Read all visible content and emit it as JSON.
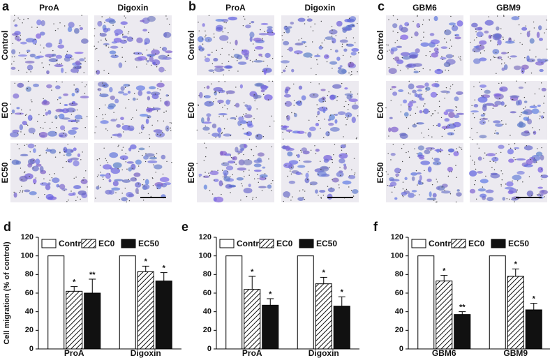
{
  "image_panels": [
    {
      "label": "a",
      "columns": [
        "ProA",
        "Digoxin"
      ],
      "rows": [
        "Control",
        "EC0",
        "EC50"
      ]
    },
    {
      "label": "b",
      "columns": [
        "ProA",
        "Digoxin"
      ],
      "rows": [
        "Control",
        "EC0",
        "EC50"
      ]
    },
    {
      "label": "c",
      "columns": [
        "GBM6",
        "GBM9"
      ],
      "rows": [
        "Control",
        "EC0",
        "EC50"
      ]
    }
  ],
  "chart_data": [
    {
      "type": "bar",
      "label": "d",
      "ylabel": "Cell migration (% of control)",
      "categories": [
        "ProA",
        "Digoxin"
      ],
      "ylim": [
        0,
        120
      ],
      "yticks": [
        0,
        20,
        40,
        60,
        80,
        100,
        120
      ],
      "series": [
        {
          "name": "Control",
          "color": "#ffffff",
          "values": [
            100,
            100
          ]
        },
        {
          "name": "EC0",
          "color": "#ffffff",
          "pattern": "hatch",
          "values": [
            62,
            83
          ],
          "errors": [
            5,
            6
          ],
          "annotations": [
            "*",
            "*"
          ]
        },
        {
          "name": "EC50",
          "color": "#111111",
          "values": [
            60,
            73
          ],
          "errors": [
            15,
            9
          ],
          "annotations": [
            "**",
            "*"
          ]
        }
      ]
    },
    {
      "type": "bar",
      "label": "e",
      "categories": [
        "ProA",
        "Digoxin"
      ],
      "ylim": [
        0,
        120
      ],
      "yticks": [
        0,
        20,
        40,
        60,
        80,
        100,
        120
      ],
      "series": [
        {
          "name": "Control",
          "color": "#ffffff",
          "values": [
            100,
            100
          ]
        },
        {
          "name": "EC0",
          "color": "#ffffff",
          "pattern": "hatch",
          "values": [
            64,
            70
          ],
          "errors": [
            14,
            7
          ],
          "annotations": [
            "*",
            "*"
          ]
        },
        {
          "name": "EC50",
          "color": "#111111",
          "values": [
            47,
            46
          ],
          "errors": [
            7,
            10
          ],
          "annotations": [
            "*",
            "*"
          ]
        }
      ]
    },
    {
      "type": "bar",
      "label": "f",
      "categories": [
        "GBM6",
        "GBM9"
      ],
      "ylim": [
        0,
        120
      ],
      "yticks": [
        0,
        20,
        40,
        60,
        80,
        100,
        120
      ],
      "series": [
        {
          "name": "Control",
          "color": "#ffffff",
          "values": [
            100,
            100
          ]
        },
        {
          "name": "EC0",
          "color": "#ffffff",
          "pattern": "hatch",
          "values": [
            73,
            78
          ],
          "errors": [
            6,
            8
          ],
          "annotations": [
            "*",
            "*"
          ]
        },
        {
          "name": "EC50",
          "color": "#111111",
          "values": [
            37,
            42
          ],
          "errors": [
            3,
            7
          ],
          "annotations": [
            "**",
            "*"
          ]
        }
      ]
    }
  ]
}
